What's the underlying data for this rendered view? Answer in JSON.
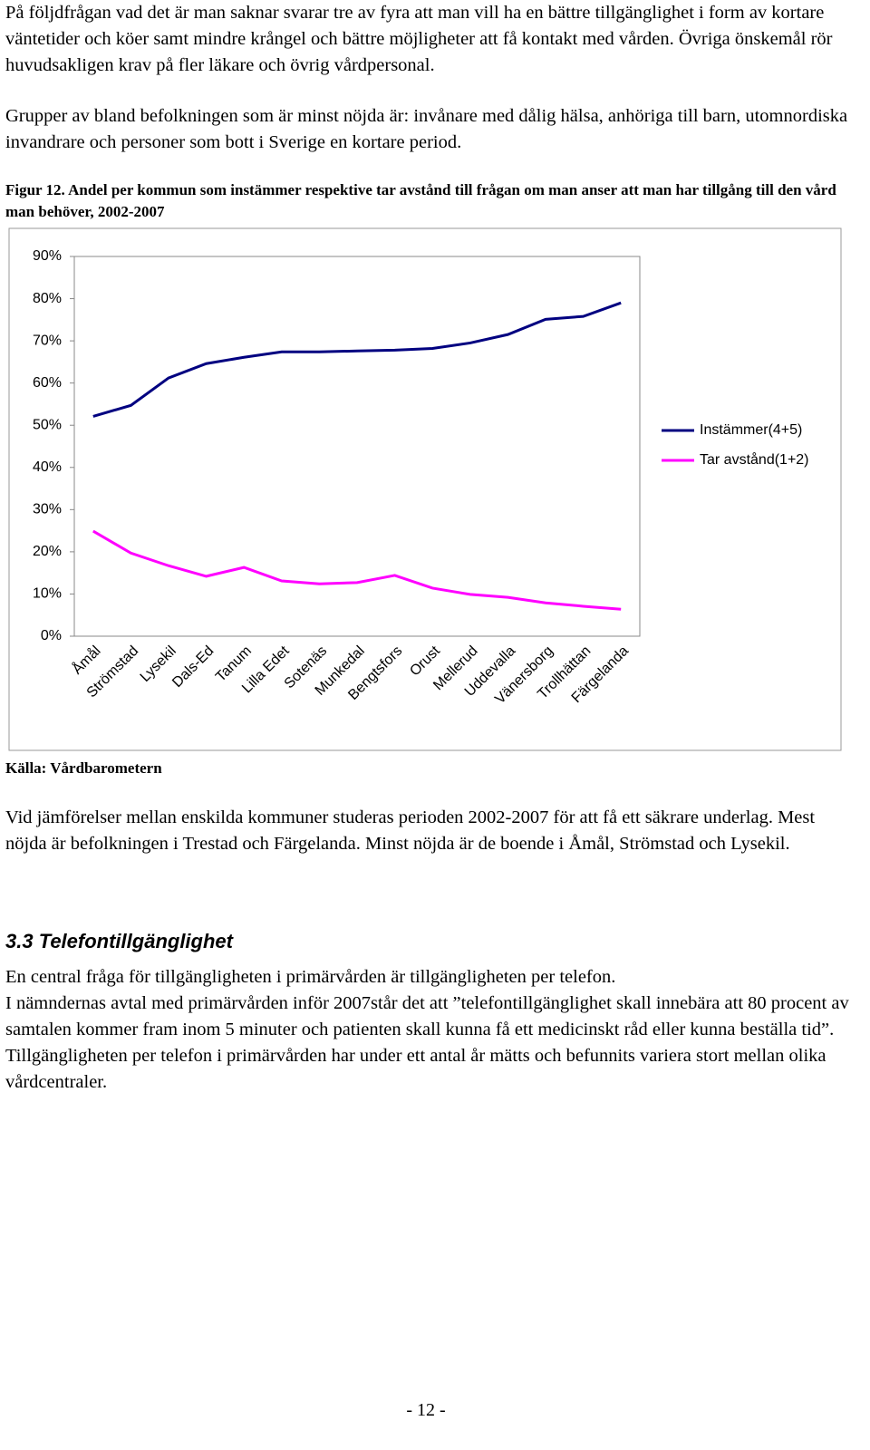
{
  "paragraphs": [
    "På följdfrågan vad det är man saknar svarar tre av fyra att man vill ha en bättre tillgänglighet i form av kortare väntetider och köer samt mindre krångel och bättre möjligheter att få kontakt med vården. Övriga önskemål rör huvudsakligen krav på fler läkare och övrig vårdpersonal.",
    "Grupper av bland befolkningen som är minst nöjda är: invånare med dålig hälsa, anhöriga till barn, utomnordiska invandrare och personer som bott i Sverige en kortare period."
  ],
  "figure": {
    "caption": "Figur 12. Andel per kommun som instämmer respektive tar avstånd till frågan om man anser att man har tillgång till den vård man behöver, 2002-2007",
    "source": "Källa: Vårdbarometern"
  },
  "chart_data": {
    "type": "line",
    "categories": [
      "Åmål",
      "Strömstad",
      "Lysekil",
      "Dals-Ed",
      "Tanum",
      "Lilla Edet",
      "Sotenäs",
      "Munkedal",
      "Bengtsfors",
      "Orust",
      "Mellerud",
      "Uddevalla",
      "Vänersborg",
      "Trollhättan",
      "Färgelanda"
    ],
    "series": [
      {
        "name": "Instämmer(4+5)",
        "color": "#000080",
        "values": [
          52.1,
          54.7,
          61.2,
          64.6,
          66.1,
          67.4,
          67.4,
          67.6,
          67.8,
          68.2,
          69.5,
          71.5,
          75.1,
          75.8,
          79.0
        ]
      },
      {
        "name": "Tar avstånd(1+2)",
        "color": "#ff00ff",
        "values": [
          24.9,
          19.7,
          16.7,
          14.2,
          16.3,
          13.1,
          12.4,
          12.7,
          14.4,
          11.4,
          9.9,
          9.2,
          7.9,
          7.1,
          6.4
        ]
      }
    ],
    "ylim": [
      0,
      90
    ],
    "yticks": [
      {
        "value": 0,
        "label": "0%"
      },
      {
        "value": 10,
        "label": "10%"
      },
      {
        "value": 20,
        "label": "20%"
      },
      {
        "value": 30,
        "label": "30%"
      },
      {
        "value": 40,
        "label": "40%"
      },
      {
        "value": 50,
        "label": "50%"
      },
      {
        "value": 60,
        "label": "60%"
      },
      {
        "value": 70,
        "label": "70%"
      },
      {
        "value": 80,
        "label": "80%"
      },
      {
        "value": 90,
        "label": "90%"
      }
    ],
    "grid": false,
    "legend": "right"
  },
  "after_paragraphs": [
    "Vid jämförelser mellan enskilda kommuner studeras perioden 2002-2007 för att få ett säkrare underlag. Mest nöjda är befolkningen i Trestad och Färgelanda. Minst nöjda är de boende i Åmål, Strömstad och Lysekil."
  ],
  "section": {
    "heading": "3.3 Telefontillgänglighet",
    "paragraphs": [
      "En central fråga för tillgängligheten i primärvården är tillgängligheten per telefon.",
      "I nämndernas avtal med primärvården inför 2007står det att ”telefontillgänglighet skall innebära att 80 procent av samtalen kommer fram inom 5 minuter och patienten skall kunna få ett medicinskt råd eller kunna beställa tid”. Tillgängligheten per telefon i primärvården har under ett antal år mätts och befunnits variera stort mellan olika vårdcentraler."
    ]
  },
  "page_number": "- 12 -"
}
